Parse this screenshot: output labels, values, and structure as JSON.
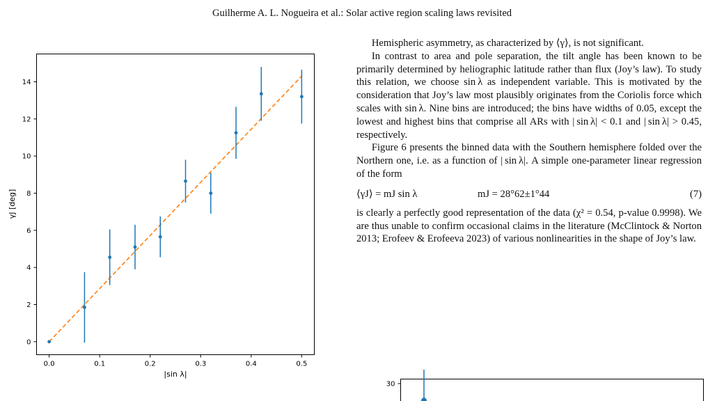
{
  "header": {
    "running_title": "Guilherme A. L. Nogueira et al.: Solar active region scaling laws revisited"
  },
  "text": {
    "p1": "Hemispheric asymmetry, as characterized by ⟨γ⟩, is not significant.",
    "p2": "In contrast to area and pole separation, the tilt angle has been known to be primarily determined by heliographic latitude rather than flux (Joy’s law). To study this relation, we choose sin λ as independent variable. This is motivated by the consideration that Joy’s law most plausibly originates from the Coriolis force which scales with sin λ. Nine bins are introduced; the bins have widths of 0.05, except the lowest and highest bins that comprise all ARs with | sin λ| < 0.1 and | sin λ| > 0.45, respectively.",
    "p3": "Figure 6 presents the binned data with the Southern hemisphere folded over the Northern one, i.e. as a function of | sin λ|. A simple one-parameter linear regression of the form",
    "eq_lhs": "⟨γJ⟩ = mJ sin λ",
    "eq_rhs": "mJ = 28°62±1°44",
    "eq_num": "(7)",
    "p4": "is clearly a perfectly good representation of the data (χ² = 0.54, p-value 0.9998). We are thus unable to confirm occasional claims in the literature (McClintock & Norton 2013; Erofeev & Erofeeva 2023) of various nonlinearities in the shape of Joy’s law."
  },
  "chart_data": [
    {
      "type": "scatter",
      "x": [
        0.0,
        0.07,
        0.12,
        0.17,
        0.22,
        0.27,
        0.32,
        0.37,
        0.42,
        0.5
      ],
      "y": [
        0.0,
        1.85,
        4.55,
        5.1,
        5.65,
        8.65,
        8.0,
        11.25,
        13.35,
        13.2
      ],
      "yerr": [
        0.0,
        1.9,
        1.5,
        1.2,
        1.1,
        1.15,
        1.1,
        1.4,
        1.45,
        1.45
      ],
      "fit": {
        "slope": 28.62,
        "x0": 0.0,
        "x1": 0.5
      },
      "xlabel": "|sin λ|",
      "ylabel": "γJ [deg]",
      "xticks": [
        "0.0",
        "0.1",
        "0.2",
        "0.3",
        "0.4",
        "0.5"
      ],
      "yticks": [
        "0",
        "2",
        "4",
        "6",
        "8",
        "10",
        "12",
        "14"
      ],
      "xlim": [
        -0.025,
        0.525
      ],
      "ylim": [
        -0.7,
        15.5
      ],
      "grid": false,
      "colors": {
        "points": "#1f77b4",
        "fit": "#ff7f0e"
      }
    },
    {
      "type": "scatter",
      "yticks": [
        "30"
      ],
      "points": [
        {
          "y": 27.8
        }
      ],
      "colors": {
        "points": "#1f77b4"
      }
    }
  ]
}
